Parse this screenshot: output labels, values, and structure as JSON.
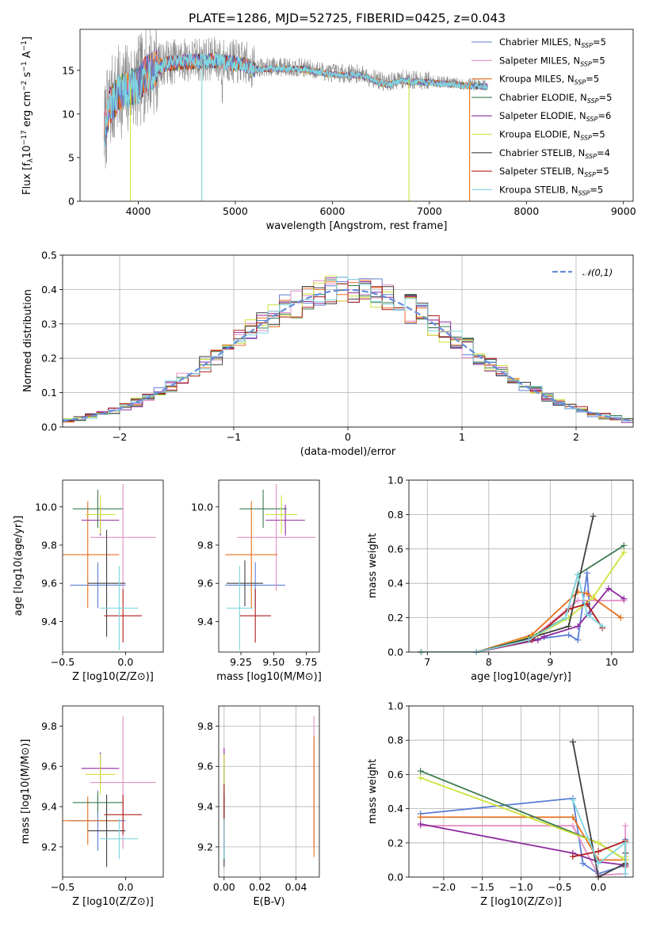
{
  "figure": {
    "title": "PLATE=1286, MJD=52725, FIBERID=0425, z=0.043"
  },
  "models": [
    {
      "name": "Chabrier MILES",
      "nssp": "5",
      "color": "#5b7fd4"
    },
    {
      "name": "Salpeter MILES",
      "nssp": "5",
      "color": "#e48fc6"
    },
    {
      "name": "Kroupa MILES",
      "nssp": "5",
      "color": "#e86f1c"
    },
    {
      "name": "Chabrier ELODIE",
      "nssp": "5",
      "color": "#3a7a4e"
    },
    {
      "name": "Salpeter ELODIE",
      "nssp": "6",
      "color": "#8e2a9e"
    },
    {
      "name": "Kroupa ELODIE",
      "nssp": "5",
      "color": "#cfe23a"
    },
    {
      "name": "Chabrier STELIB",
      "nssp": "4",
      "color": "#404040"
    },
    {
      "name": "Salpeter STELIB",
      "nssp": "5",
      "color": "#b01c1c"
    },
    {
      "name": "Kroupa STELIB",
      "nssp": "5",
      "color": "#7fd6de"
    }
  ],
  "chart_data": [
    {
      "id": "spectrum",
      "type": "line",
      "title": "PLATE=1286, MJD=52725, FIBERID=0425, z=0.043",
      "xlabel": "wavelength [Angstrom, rest frame]",
      "ylabel": "Flux [f_λ 10^-17 erg cm^-2 s^-1 A^-1]",
      "xlim": [
        3400,
        9100
      ],
      "ylim": [
        0,
        19.7
      ],
      "xticks": [
        4000,
        5000,
        6000,
        7000,
        8000,
        9000
      ],
      "yticks": [
        0,
        5,
        10,
        15
      ],
      "data_range": [
        3650,
        7600
      ],
      "spectrum_shape": [
        [
          3650,
          8
        ],
        [
          3700,
          11
        ],
        [
          3800,
          12.5
        ],
        [
          3900,
          13
        ],
        [
          4000,
          13.5
        ],
        [
          4100,
          15
        ],
        [
          4300,
          16
        ],
        [
          4500,
          16.2
        ],
        [
          4800,
          16.3
        ],
        [
          5100,
          15.8
        ],
        [
          5200,
          15.3
        ],
        [
          5400,
          15.4
        ],
        [
          5700,
          15.3
        ],
        [
          6000,
          14.7
        ],
        [
          6300,
          14.6
        ],
        [
          6560,
          13.5
        ],
        [
          6700,
          14.0
        ],
        [
          7000,
          13.8
        ],
        [
          7300,
          13.5
        ],
        [
          7600,
          13.3
        ]
      ],
      "legend": "top-right"
    },
    {
      "id": "residuals",
      "type": "bar",
      "xlabel": "(data-model)/error",
      "ylabel": "Normed distribution",
      "xlim": [
        -2.5,
        2.5
      ],
      "ylim": [
        0,
        0.5
      ],
      "xticks": [
        -2,
        -1,
        0,
        1,
        2
      ],
      "yticks": [
        0.0,
        0.1,
        0.2,
        0.3,
        0.4,
        0.5
      ],
      "bin_width": 0.1,
      "reference_curve": {
        "name": "𝒩(0,1)",
        "mean": 0,
        "sigma": 1
      },
      "grid": true,
      "legend": "top-right"
    },
    {
      "id": "age-vs-Z",
      "type": "scatter",
      "xlabel": "Z [log10(Z/Z⊙)]",
      "ylabel": "age  [log10(age/yr)]",
      "xlim": [
        -0.5,
        0.3
      ],
      "ylim": [
        9.24,
        10.14
      ],
      "xticks": [
        -0.5,
        0.0
      ],
      "yticks": [
        9.4,
        9.6,
        9.8,
        10.0
      ],
      "points": [
        {
          "x": -0.22,
          "y": 9.59,
          "xerr": 0.22,
          "yerr": 0.12
        },
        {
          "x": -0.02,
          "y": 9.84,
          "xerr": 0.26,
          "yerr": 0.28
        },
        {
          "x": -0.3,
          "y": 9.75,
          "xerr": 0.25,
          "yerr": 0.28
        },
        {
          "x": -0.22,
          "y": 9.99,
          "xerr": 0.2,
          "yerr": 0.1
        },
        {
          "x": -0.2,
          "y": 9.93,
          "xerr": 0.15,
          "yerr": 0.08
        },
        {
          "x": -0.2,
          "y": 9.96,
          "xerr": 0.12,
          "yerr": 0.1
        },
        {
          "x": -0.15,
          "y": 9.6,
          "xerr": 0.15,
          "yerr": 0.28
        },
        {
          "x": -0.02,
          "y": 9.43,
          "xerr": 0.15,
          "yerr": 0.14
        },
        {
          "x": -0.05,
          "y": 9.47,
          "xerr": 0.15,
          "yerr": 0.22
        }
      ]
    },
    {
      "id": "age-vs-mass",
      "type": "scatter",
      "xlabel": "mass [log10(M/M⊙)]",
      "ylabel": "",
      "xlim": [
        9.08,
        9.85
      ],
      "ylim": [
        9.24,
        10.14
      ],
      "xticks": [
        9.25,
        9.5,
        9.75
      ],
      "yticks": [
        9.4,
        9.6,
        9.8,
        10.0
      ],
      "points": [
        {
          "x": 9.36,
          "y": 9.59,
          "xerr": 0.23,
          "yerr": 0.12
        },
        {
          "x": 9.52,
          "y": 9.84,
          "xerr": 0.3,
          "yerr": 0.28
        },
        {
          "x": 9.33,
          "y": 9.75,
          "xerr": 0.2,
          "yerr": 0.28
        },
        {
          "x": 9.42,
          "y": 9.99,
          "xerr": 0.18,
          "yerr": 0.1
        },
        {
          "x": 9.59,
          "y": 9.93,
          "xerr": 0.15,
          "yerr": 0.08
        },
        {
          "x": 9.56,
          "y": 9.96,
          "xerr": 0.12,
          "yerr": 0.1
        },
        {
          "x": 9.28,
          "y": 9.6,
          "xerr": 0.14,
          "yerr": 0.12
        },
        {
          "x": 9.36,
          "y": 9.43,
          "xerr": 0.12,
          "yerr": 0.14
        },
        {
          "x": 9.24,
          "y": 9.47,
          "xerr": 0.1,
          "yerr": 0.22
        }
      ]
    },
    {
      "id": "weight-vs-age",
      "type": "line",
      "xlabel": "age  [log10(age/yr)]",
      "ylabel": "mass weight",
      "xlim": [
        6.7,
        10.35
      ],
      "ylim": [
        0,
        1.0
      ],
      "xticks": [
        7,
        8,
        9,
        10
      ],
      "yticks": [
        0.0,
        0.2,
        0.4,
        0.6,
        0.8,
        1.0
      ],
      "grid": true,
      "series": [
        {
          "model": 0,
          "x": [
            6.9,
            7.8,
            8.65,
            9.3,
            9.45,
            9.6,
            9.65
          ],
          "y": [
            0.0,
            0.0,
            0.07,
            0.1,
            0.07,
            0.46,
            0.22
          ]
        },
        {
          "model": 1,
          "x": [
            6.9,
            7.8,
            8.7,
            9.45,
            10.2
          ],
          "y": [
            0.0,
            0.0,
            0.08,
            0.3,
            0.3
          ]
        },
        {
          "model": 2,
          "x": [
            6.9,
            7.8,
            8.7,
            9.45,
            9.6,
            10.15
          ],
          "y": [
            0.0,
            0.0,
            0.1,
            0.35,
            0.34,
            0.2
          ]
        },
        {
          "model": 3,
          "x": [
            6.9,
            7.8,
            8.65,
            9.25,
            9.45,
            10.2
          ],
          "y": [
            0.0,
            0.0,
            0.08,
            0.2,
            0.45,
            0.62
          ]
        },
        {
          "model": 4,
          "x": [
            7.8,
            8.8,
            8.9,
            9.45,
            9.95,
            10.2
          ],
          "y": [
            0.0,
            0.07,
            0.09,
            0.15,
            0.37,
            0.31
          ]
        },
        {
          "model": 5,
          "x": [
            6.9,
            7.8,
            8.8,
            9.3,
            9.7,
            10.2
          ],
          "y": [
            0.0,
            0.0,
            0.1,
            0.2,
            0.32,
            0.58
          ]
        },
        {
          "model": 6,
          "x": [
            6.9,
            7.8,
            8.65,
            9.3,
            9.7
          ],
          "y": [
            0.0,
            0.0,
            0.08,
            0.15,
            0.79
          ]
        },
        {
          "model": 7,
          "x": [
            6.9,
            7.8,
            8.7,
            9.3,
            9.6,
            9.85
          ],
          "y": [
            0.0,
            0.0,
            0.07,
            0.25,
            0.28,
            0.14
          ]
        },
        {
          "model": 8,
          "x": [
            6.9,
            7.8,
            8.65,
            9.25,
            9.45,
            9.6,
            9.85
          ],
          "y": [
            0.0,
            0.0,
            0.07,
            0.2,
            0.45,
            0.22,
            0.15
          ]
        }
      ]
    },
    {
      "id": "mass-vs-Z",
      "type": "scatter",
      "xlabel": "Z [log10(Z/Z⊙)]",
      "ylabel": "mass [log10(M/M⊙)]",
      "xlim": [
        -0.5,
        0.3
      ],
      "ylim": [
        9.05,
        9.9
      ],
      "xticks": [
        -0.5,
        0.0
      ],
      "yticks": [
        9.2,
        9.4,
        9.6,
        9.8
      ],
      "points": [
        {
          "x": -0.22,
          "y": 9.33,
          "xerr": 0.22,
          "yerr": 0.15
        },
        {
          "x": -0.02,
          "y": 9.52,
          "xerr": 0.26,
          "yerr": 0.33
        },
        {
          "x": -0.3,
          "y": 9.33,
          "xerr": 0.25,
          "yerr": 0.12
        },
        {
          "x": -0.22,
          "y": 9.42,
          "xerr": 0.2,
          "yerr": 0.05
        },
        {
          "x": -0.2,
          "y": 9.59,
          "xerr": 0.15,
          "yerr": 0.08
        },
        {
          "x": -0.2,
          "y": 9.56,
          "xerr": 0.12,
          "yerr": 0.1
        },
        {
          "x": -0.15,
          "y": 9.28,
          "xerr": 0.15,
          "yerr": 0.18
        },
        {
          "x": -0.02,
          "y": 9.36,
          "xerr": 0.15,
          "yerr": 0.1
        },
        {
          "x": -0.05,
          "y": 9.24,
          "xerr": 0.15,
          "yerr": 0.1
        }
      ]
    },
    {
      "id": "mass-vs-EBV",
      "type": "scatter",
      "xlabel": "E(B-V)",
      "ylabel": "",
      "xlim": [
        -0.003,
        0.053
      ],
      "ylim": [
        9.05,
        9.9
      ],
      "xticks": [
        0.0,
        0.02,
        0.04
      ],
      "yticks": [
        9.2,
        9.4,
        9.6,
        9.8
      ],
      "grid": true,
      "points": [
        {
          "x": 0.0,
          "y": 9.36,
          "xerr": 0,
          "yerr": 0.23
        },
        {
          "x": 0.05,
          "y": 9.52,
          "xerr": 0,
          "yerr": 0.33
        },
        {
          "x": 0.05,
          "y": 9.45,
          "xerr": 0,
          "yerr": 0.3
        },
        {
          "x": 0.0,
          "y": 9.42,
          "xerr": 0,
          "yerr": 0.1
        },
        {
          "x": 0.0,
          "y": 9.59,
          "xerr": 0,
          "yerr": 0.1
        },
        {
          "x": 0.0,
          "y": 9.56,
          "xerr": 0,
          "yerr": 0.1
        },
        {
          "x": 0.0,
          "y": 9.28,
          "xerr": 0,
          "yerr": 0.18
        },
        {
          "x": 0.0,
          "y": 9.36,
          "xerr": 0,
          "yerr": 0.15
        },
        {
          "x": 0.0,
          "y": 9.24,
          "xerr": 0,
          "yerr": 0.1
        }
      ]
    },
    {
      "id": "weight-vs-Z",
      "type": "line",
      "xlabel": "Z [log10(Z/Z⊙)]",
      "ylabel": "mass weight",
      "xlim": [
        -2.45,
        0.45
      ],
      "ylim": [
        0,
        1.0
      ],
      "xticks": [
        -2.0,
        -1.5,
        -1.0,
        -0.5,
        0.0
      ],
      "yticks": [
        0.0,
        0.2,
        0.4,
        0.6,
        0.8,
        1.0
      ],
      "grid": true,
      "series": [
        {
          "model": 0,
          "x": [
            -2.3,
            -0.33,
            -0.2,
            0.0,
            0.35,
            0.35
          ],
          "y": [
            0.37,
            0.46,
            0.08,
            0.02,
            0.07,
            0.22
          ]
        },
        {
          "model": 1,
          "x": [
            -2.3,
            -0.33,
            0.0,
            0.35,
            0.35
          ],
          "y": [
            0.3,
            0.3,
            0.01,
            0.02,
            0.3
          ]
        },
        {
          "model": 2,
          "x": [
            -2.3,
            -0.33,
            0.0,
            0.35,
            0.35
          ],
          "y": [
            0.35,
            0.35,
            0.1,
            0.1,
            0.2
          ]
        },
        {
          "model": 3,
          "x": [
            -2.3,
            0.0,
            0.35,
            0.35
          ],
          "y": [
            0.62,
            0.2,
            0.1,
            0.07
          ]
        },
        {
          "model": 4,
          "x": [
            -2.3,
            -0.33,
            0.0,
            0.35
          ],
          "y": [
            0.31,
            0.14,
            0.09,
            0.07
          ]
        },
        {
          "model": 5,
          "x": [
            -2.3,
            0.0,
            0.35,
            0.35
          ],
          "y": [
            0.58,
            0.2,
            0.1,
            0.12
          ]
        },
        {
          "model": 6,
          "x": [
            -0.33,
            0.0,
            0.35,
            0.35
          ],
          "y": [
            0.79,
            0.0,
            0.08,
            0.14
          ]
        },
        {
          "model": 7,
          "x": [
            -0.33,
            0.0,
            0.35,
            0.35
          ],
          "y": [
            0.12,
            0.15,
            0.21,
            0.06
          ]
        },
        {
          "model": 8,
          "x": [
            -0.33,
            0.0,
            0.35,
            0.35
          ],
          "y": [
            0.45,
            0.08,
            0.2,
            0.02
          ]
        }
      ]
    }
  ]
}
